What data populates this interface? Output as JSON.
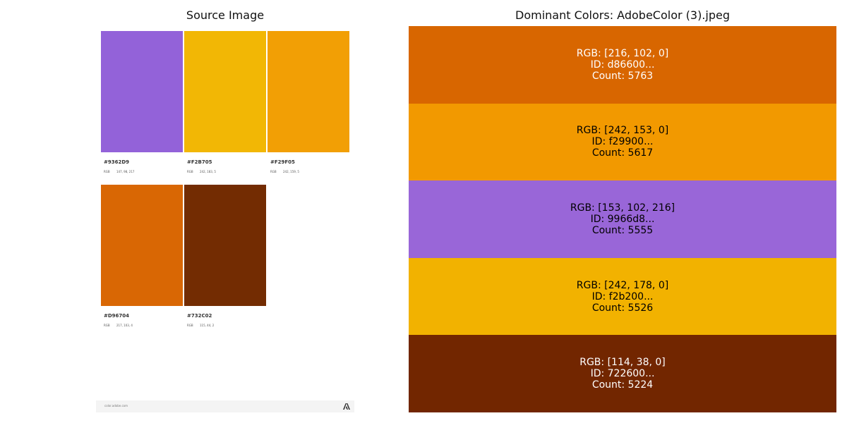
{
  "left_title": "Source Image",
  "right_title": "Dominant Colors: AdobeColor (3).jpeg",
  "source": {
    "swatches": [
      {
        "hex_label": "#9362D9",
        "rgb_key": "RGB",
        "rgb_value": "147, 98, 217",
        "color": "#9362D9"
      },
      {
        "hex_label": "#F2B705",
        "rgb_key": "RGB",
        "rgb_value": "242, 183, 5",
        "color": "#F2B705"
      },
      {
        "hex_label": "#F29F05",
        "rgb_key": "RGB",
        "rgb_value": "242, 159, 5",
        "color": "#F29F05"
      },
      {
        "hex_label": "#D96704",
        "rgb_key": "RGB",
        "rgb_value": "217, 103, 4",
        "color": "#D96704"
      },
      {
        "hex_label": "#732C02",
        "rgb_key": "RGB",
        "rgb_value": "115, 44, 2",
        "color": "#732C02"
      }
    ],
    "footer_url": "color.adobe.com",
    "footer_logo_icon": "adobe-logo-icon"
  },
  "dominant_colors": [
    {
      "rgb_text": "RGB: [216, 102, 0]",
      "id_text": "ID: d86600...",
      "count_text": "Count: 5763",
      "color": "#d86600",
      "text_color": "#ffffff"
    },
    {
      "rgb_text": "RGB: [242, 153, 0]",
      "id_text": "ID: f29900...",
      "count_text": "Count: 5617",
      "color": "#f29900",
      "text_color": "#000000"
    },
    {
      "rgb_text": "RGB: [153, 102, 216]",
      "id_text": "ID: 9966d8...",
      "count_text": "Count: 5555",
      "color": "#9966d8",
      "text_color": "#000000"
    },
    {
      "rgb_text": "RGB: [242, 178, 0]",
      "id_text": "ID: f2b200...",
      "count_text": "Count: 5526",
      "color": "#f2b200",
      "text_color": "#000000"
    },
    {
      "rgb_text": "RGB: [114, 38, 0]",
      "id_text": "ID: 722600...",
      "count_text": "Count: 5224",
      "color": "#722600",
      "text_color": "#ffffff"
    }
  ]
}
